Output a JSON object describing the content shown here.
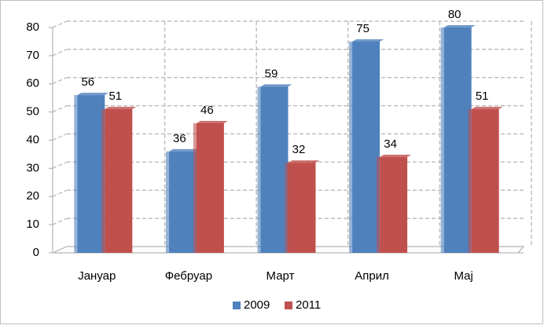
{
  "chart_data": {
    "type": "bar",
    "categories": [
      "Јануар",
      "Фебруар",
      "Март",
      "Април",
      "Мај"
    ],
    "series": [
      {
        "name": "2009",
        "color": "#4f81bd",
        "values": [
          56,
          36,
          59,
          75,
          80
        ]
      },
      {
        "name": "2011",
        "color": "#c0504d",
        "values": [
          51,
          46,
          32,
          34,
          51
        ]
      }
    ],
    "ylim": [
      0,
      80
    ],
    "yticks": [
      0,
      10,
      20,
      30,
      40,
      50,
      60,
      70,
      80
    ],
    "grid": true,
    "legend": "bottom"
  }
}
